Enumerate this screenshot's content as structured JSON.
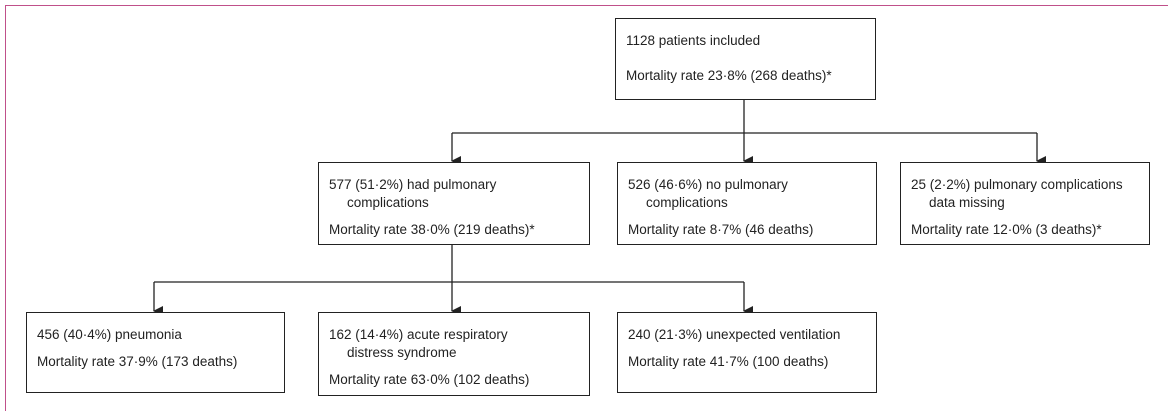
{
  "nodes": [
    {
      "lines": [
        "1128 patients included"
      ],
      "mortality": "Mortality rate 23·8% (268 deaths)*"
    },
    {
      "lines": [
        "577 (51·2%) had pulmonary",
        "complications"
      ],
      "mortality": "Mortality rate 38·0% (219 deaths)*"
    },
    {
      "lines": [
        "526 (46·6%) no pulmonary",
        "complications"
      ],
      "mortality": "Mortality rate 8·7% (46 deaths)"
    },
    {
      "lines": [
        "25 (2·2%) pulmonary complications",
        "data missing"
      ],
      "mortality": "Mortality rate 12·0% (3 deaths)*"
    },
    {
      "lines": [
        "456 (40·4%) pneumonia"
      ],
      "mortality": "Mortality rate 37·9% (173 deaths)"
    },
    {
      "lines": [
        "162 (14·4%) acute respiratory",
        "distress syndrome"
      ],
      "mortality": "Mortality rate 63·0% (102 deaths)"
    },
    {
      "lines": [
        "240 (21·3%) unexpected ventilation"
      ],
      "mortality": "Mortality rate 41·7% (100 deaths)"
    }
  ]
}
